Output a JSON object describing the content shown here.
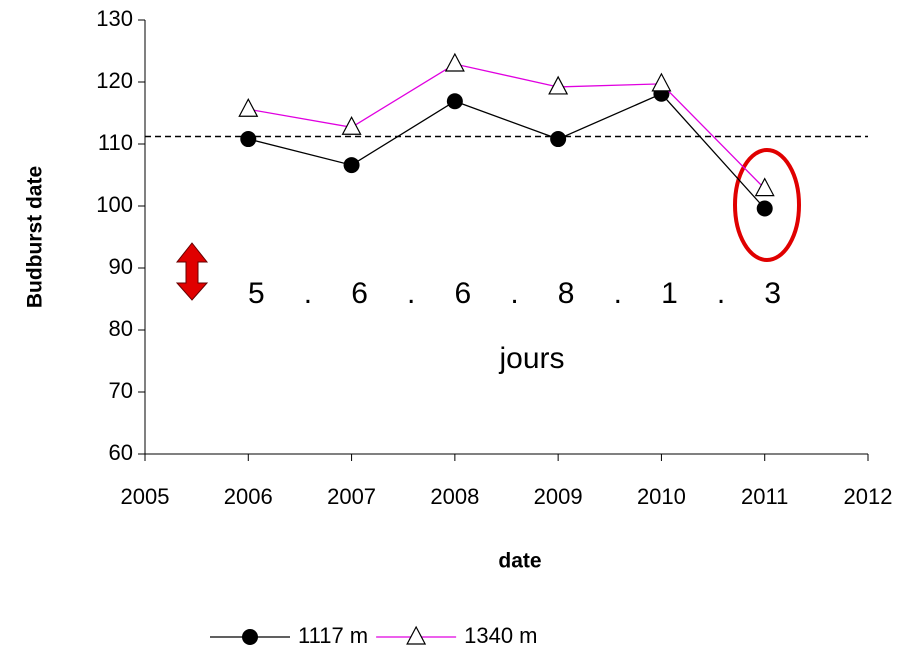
{
  "chart_data": {
    "type": "line",
    "x_label": "date",
    "y_label": "Budburst date",
    "x": [
      2006,
      2007,
      2008,
      2009,
      2010,
      2011
    ],
    "series": [
      {
        "name": "1117 m",
        "color": "#000000",
        "marker": "circle",
        "values": [
          110.8,
          106.6,
          116.9,
          110.8,
          118.1,
          99.6
        ]
      },
      {
        "name": "1340 m",
        "color": "#e000e0",
        "marker": "triangle",
        "values": [
          115.6,
          112.7,
          122.9,
          119.2,
          119.7,
          102.8
        ]
      }
    ],
    "reference_line": 111.2,
    "differences": [
      5,
      6,
      6,
      8,
      1,
      3
    ],
    "separator": ".",
    "annotation": "jours",
    "xlim": [
      2005,
      2012
    ],
    "xticks": [
      2005,
      2006,
      2007,
      2008,
      2009,
      2010,
      2011,
      2012
    ],
    "ylim": [
      60,
      130
    ],
    "yticks": [
      60,
      70,
      80,
      90,
      100,
      110,
      120,
      130
    ],
    "legend": "bottom"
  }
}
